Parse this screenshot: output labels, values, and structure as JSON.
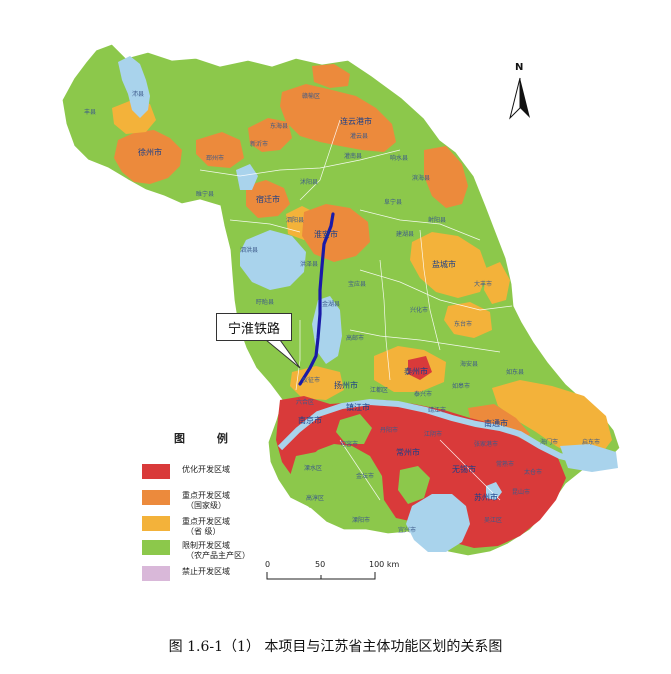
{
  "callout_label": "宁淮铁路",
  "north_label": "N",
  "caption": "图 1.6-1（1） 本项目与江苏省主体功能区划的关系图",
  "legend": {
    "title": "图 例",
    "items": [
      {
        "label": "优化开发区域",
        "sub": "",
        "color": "#d93a3a"
      },
      {
        "label": "重点开发区域",
        "sub": "（国家级）",
        "color": "#ec8a3c"
      },
      {
        "label": "重点开发区域",
        "sub": "（省 级）",
        "color": "#f3b23a"
      },
      {
        "label": "限制开发区域",
        "sub": "（农产品主产区）",
        "color": "#8cc84b"
      },
      {
        "label": "禁止开发区域",
        "sub": "",
        "color": "#d9b8d9"
      }
    ]
  },
  "scale": {
    "ticks": [
      "0",
      "50",
      "100 km"
    ]
  },
  "colors": {
    "water": "#a9d3ec",
    "route": "#1a1aa8",
    "boundary": "#ffffff",
    "city_text": "#1a3f8a"
  },
  "cities": {
    "lianyungang": "连云港市",
    "xuzhou": "徐州市",
    "suqian": "宿迁市",
    "huaian": "淮安市",
    "yancheng": "盐城市",
    "taizhou": "泰州市",
    "yangzhou": "扬州市",
    "nanjing": "南京市",
    "zhenjiang": "镇江市",
    "changzhou": "常州市",
    "wuxi": "无锡市",
    "suzhou": "苏州市",
    "nantong": "南通市"
  },
  "counties": {
    "ganyu": "赣榆区",
    "donghai": "东海县",
    "guanyun": "灌云县",
    "guannan": "灌南县",
    "xiangshui": "响水县",
    "binhai": "滨海县",
    "funing": "阜宁县",
    "sheyang": "射阳县",
    "jianhu": "建湖县",
    "dafeng": "大丰市",
    "dongtai": "东台市",
    "xinghua": "兴化市",
    "gaoyou": "高邮市",
    "baoying": "宝应县",
    "jinhu": "金湖县",
    "xuyi": "盱眙县",
    "hongze": "洪泽县",
    "siyang": "泗阳县",
    "sihong": "泗洪县",
    "shuyang": "沭阳县",
    "suining": "睢宁县",
    "pizhou": "邳州市",
    "xinyi": "新沂市",
    "fengxian": "丰县",
    "peixian": "沛县",
    "liuhe": "六合区",
    "jiangdu": "江都区",
    "rugao": "如皋市",
    "haian": "海安县",
    "rudong": "如东县",
    "qidong": "启东市",
    "haimen": "海门市",
    "jingjiang": "靖江市",
    "jiangyin": "江阴市",
    "zhangjiagang": "张家港市",
    "changshu": "常熟市",
    "taicang": "太仓市",
    "kunshan": "昆山市",
    "wujiang": "吴江区",
    "yixing": "宜兴市",
    "liyang": "溧阳市",
    "jintan": "金坛市",
    "danyang": "丹阳市",
    "jurong": "句容市",
    "lishui": "溧水区",
    "gaochun": "高淳区",
    "yizheng": "仪征市",
    "taixing": "泰兴市"
  }
}
